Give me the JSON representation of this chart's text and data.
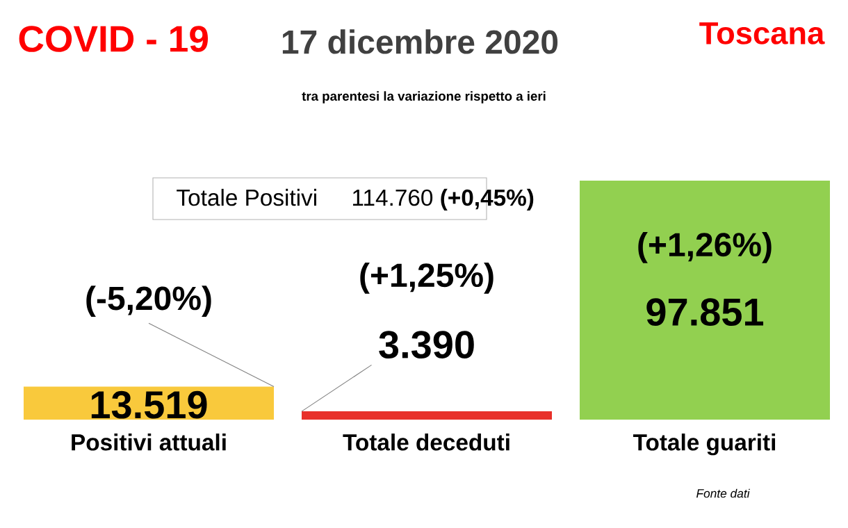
{
  "chart_data": {
    "type": "bar",
    "title": "COVID - 19",
    "subtitle": "17 dicembre 2020",
    "categories": [
      "Positivi attuali",
      "Totale deceduti",
      "Totale guariti"
    ],
    "values": [
      13519,
      3390,
      97851
    ],
    "colors": [
      "#f9c93c",
      "#e8302a",
      "#92d050"
    ],
    "value_labels": [
      "13.519",
      "3.390",
      "97.851"
    ],
    "annotations": [
      "Toscana",
      "tra parentesi la variazione rispetto a ieri",
      "Totale Positivi",
      "114.760 **(+0,45%)**",
      "Fonte dati",
      "(-5,20%)",
      "(+1,25%)",
      "(+1,26%)"
    ]
  }
}
